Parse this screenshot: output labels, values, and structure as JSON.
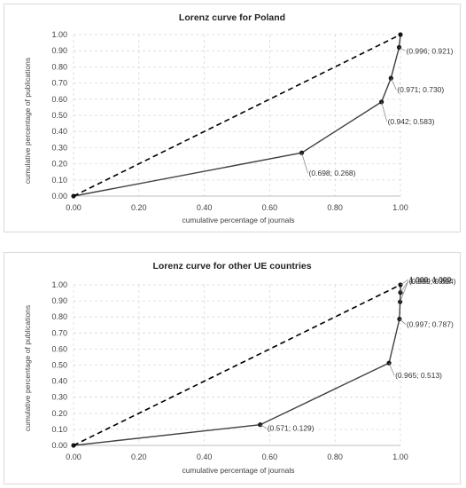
{
  "chart_data": [
    {
      "type": "line",
      "title": "Lorenz curve for Poland",
      "xlabel": "cumulative percentage of journals",
      "ylabel": "cumulative percentage of publications",
      "xlim": [
        0,
        1
      ],
      "ylim": [
        0,
        1
      ],
      "x_ticks": [
        "0.00",
        "0.20",
        "0.40",
        "0.60",
        "0.80",
        "1.00"
      ],
      "y_ticks": [
        "0.00",
        "0.10",
        "0.20",
        "0.30",
        "0.40",
        "0.50",
        "0.60",
        "0.70",
        "0.80",
        "0.90",
        "1.00"
      ],
      "grid": true,
      "series": [
        {
          "style": "solid",
          "color": "#404040",
          "points": [
            [
              0,
              0
            ],
            [
              0.698,
              0.268
            ],
            [
              0.942,
              0.583
            ],
            [
              0.971,
              0.73
            ],
            [
              0.996,
              0.921
            ],
            [
              1.0,
              1.0
            ]
          ]
        },
        {
          "style": "dashed",
          "color": "#000000",
          "points": [
            [
              0,
              0
            ],
            [
              1.0,
              1.0
            ]
          ]
        }
      ],
      "annotations": [
        {
          "text": "(0.698; 0.268)",
          "x": 0.698,
          "y": 0.268
        },
        {
          "text": "(0.942; 0.583)",
          "x": 0.942,
          "y": 0.583
        },
        {
          "text": "(0.971; 0.730)",
          "x": 0.971,
          "y": 0.73
        },
        {
          "text": "(0.996; 0.921)",
          "x": 0.996,
          "y": 0.921
        }
      ]
    },
    {
      "type": "line",
      "title": "Lorenz curve for other UE countries",
      "xlabel": "cumulative percentage of journals",
      "ylabel": "cumulative percentage of publications",
      "xlim": [
        0,
        1
      ],
      "ylim": [
        0,
        1
      ],
      "x_ticks": [
        "0.00",
        "0.20",
        "0.40",
        "0.60",
        "0.80",
        "1.00"
      ],
      "y_ticks": [
        "0.00",
        "0.10",
        "0.20",
        "0.30",
        "0.40",
        "0.50",
        "0.60",
        "0.70",
        "0.80",
        "0.90",
        "1.00"
      ],
      "grid": true,
      "series": [
        {
          "style": "solid",
          "color": "#404040",
          "points": [
            [
              0,
              0
            ],
            [
              0.571,
              0.129
            ],
            [
              0.965,
              0.513
            ],
            [
              0.997,
              0.787
            ],
            [
              0.999,
              0.894
            ],
            [
              1.0,
              0.952
            ],
            [
              1.0,
              1.0
            ]
          ]
        },
        {
          "style": "dashed",
          "color": "#000000",
          "points": [
            [
              0,
              0
            ],
            [
              1.0,
              1.0
            ]
          ]
        }
      ],
      "annotations": [
        {
          "text": "(0.571; 0.129)",
          "x": 0.571,
          "y": 0.129
        },
        {
          "text": "(0.965; 0.513)",
          "x": 0.965,
          "y": 0.513
        },
        {
          "text": "(0.997; 0.787)",
          "x": 0.997,
          "y": 0.787
        },
        {
          "text": "(0.999; 0.894)",
          "x": 0.999,
          "y": 0.894
        },
        {
          "text": "1.000; 0.952",
          "x": 1.0,
          "y": 0.952
        },
        {
          "text": "1.000; 1.000",
          "x": 1.0,
          "y": 1.0
        }
      ]
    }
  ]
}
